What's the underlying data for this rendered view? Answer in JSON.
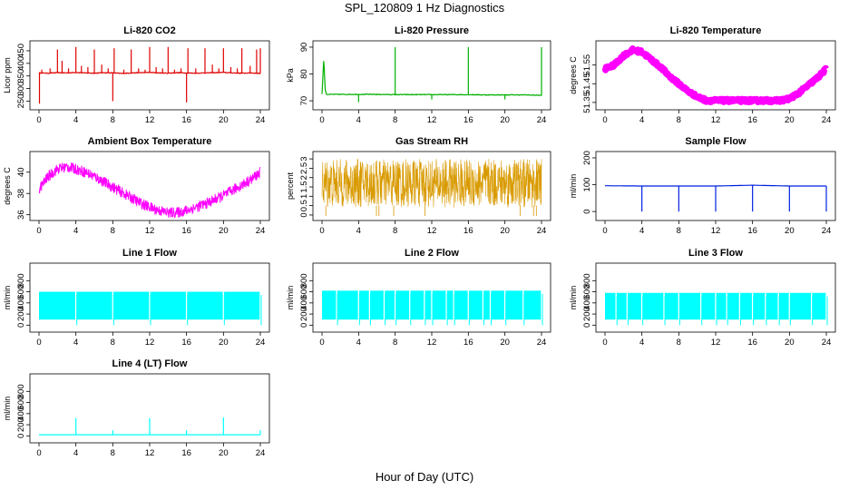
{
  "title": "SPL_120809  1 Hz Diagnostics",
  "xlabel": "Hour of Day (UTC)",
  "chart_data": [
    {
      "type": "line",
      "title": "Li-820 CO2",
      "ylabel": "Licor ppm",
      "xlim": [
        0,
        24
      ],
      "xticks": [
        "0",
        "4",
        "8",
        "12",
        "16",
        "20",
        "24"
      ],
      "ylim": [
        230,
        475
      ],
      "yticks": [
        250,
        300,
        350,
        400,
        450
      ],
      "color": "#e00000",
      "series": [
        {
          "x": [
            0,
            1,
            2,
            3,
            4,
            5,
            6,
            7,
            8,
            9,
            10,
            11,
            12,
            13,
            14,
            15,
            16,
            17,
            18,
            19,
            20,
            21,
            22,
            23,
            24
          ],
          "values": [
            362,
            361,
            363,
            362,
            364,
            362,
            361,
            363,
            362,
            360,
            362,
            363,
            364,
            362,
            361,
            363,
            362,
            361,
            362,
            363,
            364,
            362,
            361,
            362,
            360
          ]
        }
      ],
      "spikes": [
        {
          "x": 0.05,
          "y": 240
        },
        {
          "x": 0.3,
          "y": 375
        },
        {
          "x": 1.2,
          "y": 380
        },
        {
          "x": 2.0,
          "y": 455
        },
        {
          "x": 2.5,
          "y": 410
        },
        {
          "x": 3.2,
          "y": 380
        },
        {
          "x": 4.0,
          "y": 465
        },
        {
          "x": 4.6,
          "y": 390
        },
        {
          "x": 5.3,
          "y": 385
        },
        {
          "x": 6.0,
          "y": 455
        },
        {
          "x": 6.8,
          "y": 395
        },
        {
          "x": 7.5,
          "y": 380
        },
        {
          "x": 8.0,
          "y": 250
        },
        {
          "x": 8.15,
          "y": 460
        },
        {
          "x": 9.2,
          "y": 375
        },
        {
          "x": 10.0,
          "y": 455
        },
        {
          "x": 10.8,
          "y": 380
        },
        {
          "x": 11.5,
          "y": 375
        },
        {
          "x": 12.0,
          "y": 465
        },
        {
          "x": 12.7,
          "y": 385
        },
        {
          "x": 13.4,
          "y": 380
        },
        {
          "x": 14.0,
          "y": 465
        },
        {
          "x": 14.7,
          "y": 375
        },
        {
          "x": 15.4,
          "y": 380
        },
        {
          "x": 16.0,
          "y": 245
        },
        {
          "x": 16.15,
          "y": 460
        },
        {
          "x": 17.0,
          "y": 380
        },
        {
          "x": 18.0,
          "y": 460
        },
        {
          "x": 18.8,
          "y": 395
        },
        {
          "x": 19.5,
          "y": 380
        },
        {
          "x": 20.0,
          "y": 460
        },
        {
          "x": 20.8,
          "y": 385
        },
        {
          "x": 21.5,
          "y": 380
        },
        {
          "x": 22.0,
          "y": 460
        },
        {
          "x": 22.9,
          "y": 390
        },
        {
          "x": 23.6,
          "y": 455
        },
        {
          "x": 24.0,
          "y": 460
        }
      ]
    },
    {
      "type": "line",
      "title": "Li-820 Pressure",
      "ylabel": "kPa",
      "xlim": [
        0,
        24
      ],
      "xticks": [
        "0",
        "4",
        "8",
        "12",
        "16",
        "20",
        "24"
      ],
      "ylim": [
        68,
        91
      ],
      "yticks": [
        70,
        80,
        90
      ],
      "color": "#00b000",
      "series": [
        {
          "x": [
            0,
            0.2,
            0.35,
            0.5,
            2,
            4,
            6,
            8,
            10,
            12,
            14,
            16,
            18,
            20,
            22,
            23.5,
            24
          ],
          "values": [
            72.5,
            86,
            74,
            72.4,
            72.4,
            72.4,
            72.4,
            72.3,
            72.3,
            72.3,
            72.3,
            72.3,
            72.2,
            72.2,
            72.2,
            72.1,
            72.0
          ]
        }
      ],
      "spikes": [
        {
          "x": 4.0,
          "y": 69.5
        },
        {
          "x": 8.0,
          "y": 90
        },
        {
          "x": 12.0,
          "y": 70.5
        },
        {
          "x": 16.0,
          "y": 90
        },
        {
          "x": 20.0,
          "y": 70.5
        },
        {
          "x": 24.0,
          "y": 90
        }
      ]
    },
    {
      "type": "line",
      "title": "Li-820 Temperature",
      "ylabel": "degrees C",
      "xlim": [
        0,
        24
      ],
      "xticks": [
        "0",
        "4",
        "8",
        "12",
        "16",
        "20",
        "24"
      ],
      "ylim": [
        51.33,
        51.66
      ],
      "yticks": [
        51.35,
        51.45,
        51.55
      ],
      "color": "#ff00ff",
      "series": [
        {
          "x": [
            0,
            1,
            2,
            3,
            4,
            5,
            6,
            7,
            8,
            9,
            10,
            11,
            12,
            13,
            14,
            15,
            16,
            17,
            18,
            19,
            20,
            21,
            22,
            23,
            24
          ],
          "values": [
            51.53,
            51.55,
            51.6,
            51.63,
            51.62,
            51.58,
            51.54,
            51.49,
            51.45,
            51.41,
            51.38,
            51.36,
            51.36,
            51.36,
            51.36,
            51.36,
            51.36,
            51.36,
            51.36,
            51.36,
            51.37,
            51.4,
            51.44,
            51.48,
            51.53
          ]
        }
      ]
    },
    {
      "type": "line",
      "title": "Ambient Box Temperature",
      "ylabel": "degrees C",
      "xlim": [
        0,
        24
      ],
      "xticks": [
        "0",
        "4",
        "8",
        "12",
        "16",
        "20",
        "24"
      ],
      "ylim": [
        35.8,
        41.6
      ],
      "yticks": [
        36,
        38,
        40
      ],
      "color": "#ff00ff",
      "series": [
        {
          "x": [
            0,
            1,
            2,
            3,
            4,
            5,
            6,
            7,
            8,
            9,
            10,
            11,
            12,
            13,
            14,
            15,
            16,
            17,
            18,
            19,
            20,
            21,
            22,
            23,
            24
          ],
          "values": [
            38.4,
            39.6,
            40.3,
            40.5,
            40.3,
            40.0,
            39.6,
            39.1,
            38.6,
            38.1,
            37.6,
            37.1,
            36.7,
            36.4,
            36.2,
            36.2,
            36.4,
            36.7,
            37.0,
            37.4,
            37.8,
            38.3,
            38.8,
            39.3,
            40.0
          ]
        }
      ]
    },
    {
      "type": "line",
      "title": "Gas Stream RH",
      "ylabel": "percent",
      "xlim": [
        0,
        24
      ],
      "xticks": [
        "0",
        "4",
        "8",
        "12",
        "16",
        "20",
        "24"
      ],
      "ylim": [
        -0.1,
        3.2
      ],
      "yticks": [
        0.0,
        0.5,
        1.0,
        1.5,
        2.0,
        2.5,
        3.0
      ],
      "color": "#d99a00",
      "series": [
        {
          "x": [
            0,
            24
          ],
          "values": [
            1.7,
            1.7
          ]
        }
      ],
      "noise_range": [
        0.4,
        3.0
      ]
    },
    {
      "type": "line",
      "title": "Sample Flow",
      "ylabel": "ml/min",
      "xlim": [
        0,
        24
      ],
      "xticks": [
        "0",
        "4",
        "8",
        "12",
        "16",
        "20",
        "24"
      ],
      "ylim": [
        -20,
        210
      ],
      "yticks": [
        0,
        100,
        200
      ],
      "color": "#0020e0",
      "series": [
        {
          "x": [
            0,
            4,
            8,
            12,
            16,
            20,
            24
          ],
          "values": [
            96,
            95,
            95,
            95,
            98,
            95,
            95
          ]
        }
      ],
      "spikes": [
        {
          "x": 4.0,
          "y": 0
        },
        {
          "x": 8.0,
          "y": 0
        },
        {
          "x": 12.0,
          "y": 0
        },
        {
          "x": 16.0,
          "y": 0
        },
        {
          "x": 20.0,
          "y": 0
        },
        {
          "x": 24.0,
          "y": 0
        }
      ]
    },
    {
      "type": "area",
      "title": "Line 1 Flow",
      "ylabel": "ml/min",
      "xlim": [
        0,
        24
      ],
      "xticks": [
        "0",
        "4",
        "8",
        "12",
        "16",
        "20",
        "24"
      ],
      "ylim": [
        -60,
        1050
      ],
      "yticks": [
        0,
        200,
        400,
        600,
        800
      ],
      "color": "#00ffff",
      "band": {
        "x": [
          0,
          24
        ],
        "lower": 100,
        "upper": 600
      },
      "dropouts": [
        4.0,
        8.0,
        12.0,
        16.0,
        20.0,
        24.0
      ]
    },
    {
      "type": "area",
      "title": "Line 2 Flow",
      "ylabel": "ml/min",
      "xlim": [
        0,
        24
      ],
      "xticks": [
        "0",
        "4",
        "8",
        "12",
        "16",
        "20",
        "24"
      ],
      "ylim": [
        -60,
        1050
      ],
      "yticks": [
        0,
        200,
        400,
        600,
        800
      ],
      "color": "#00ffff",
      "band": {
        "x": [
          0,
          24
        ],
        "lower": 100,
        "upper": 620
      },
      "dropouts": [
        1.6,
        4.0,
        5.2,
        6.8,
        8.0,
        9.6,
        11.2,
        12.0,
        13.6,
        14.4,
        16.0,
        17.6,
        18.4,
        20.0,
        22.0,
        24.0
      ]
    },
    {
      "type": "area",
      "title": "Line 3 Flow",
      "ylabel": "ml/min",
      "xlim": [
        0,
        24
      ],
      "xticks": [
        "0",
        "4",
        "8",
        "12",
        "16",
        "20",
        "24"
      ],
      "ylim": [
        -60,
        1050
      ],
      "yticks": [
        0,
        200,
        400,
        600,
        800
      ],
      "color": "#00ffff",
      "band": {
        "x": [
          0,
          24
        ],
        "lower": 100,
        "upper": 580
      },
      "dropouts": [
        1.2,
        2.4,
        4.0,
        6.4,
        8.0,
        10.4,
        12.0,
        13.2,
        14.6,
        16.0,
        17.4,
        18.8,
        20.0,
        22.4,
        24.0
      ]
    },
    {
      "type": "line",
      "title": "Line 4 (LT) Flow",
      "ylabel": "ml/min",
      "xlim": [
        0,
        24
      ],
      "xticks": [
        "0",
        "4",
        "8",
        "12",
        "16",
        "20",
        "24"
      ],
      "ylim": [
        -60,
        1050
      ],
      "yticks": [
        0,
        200,
        400,
        600,
        800
      ],
      "color": "#00ffff",
      "series": [
        {
          "x": [
            0,
            24
          ],
          "values": [
            20,
            20
          ]
        }
      ],
      "spikes": [
        {
          "x": 4.0,
          "y": 320
        },
        {
          "x": 8.0,
          "y": 100
        },
        {
          "x": 12.0,
          "y": 320
        },
        {
          "x": 16.0,
          "y": 100
        },
        {
          "x": 20.0,
          "y": 330
        },
        {
          "x": 24.0,
          "y": 100
        }
      ]
    }
  ]
}
